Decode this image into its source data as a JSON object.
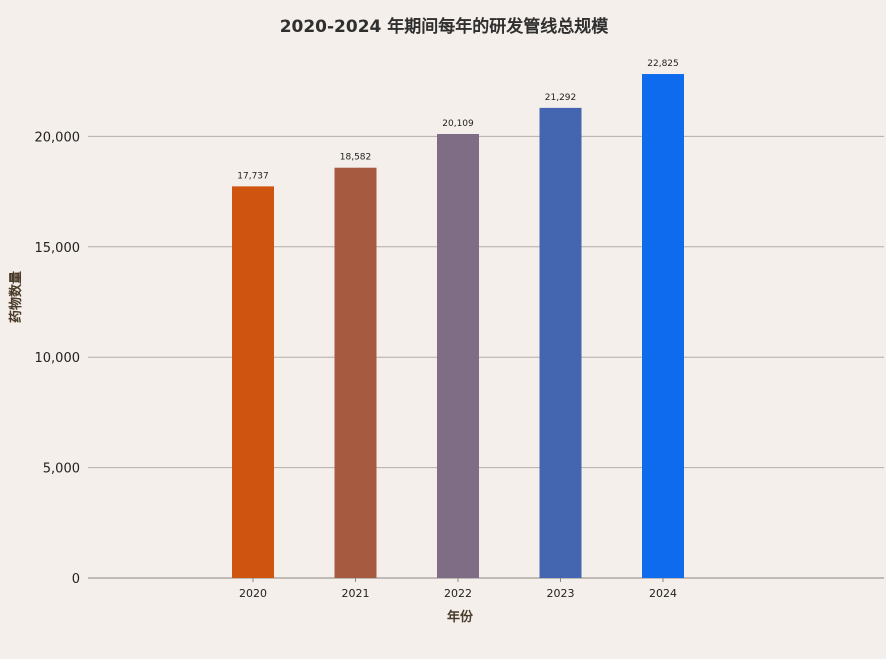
{
  "chart_data": {
    "type": "bar",
    "title": "2020-2024 年期间每年的研发管线总规模",
    "xlabel": "年份",
    "ylabel": "药物数量",
    "categories": [
      "2020",
      "2021",
      "2022",
      "2023",
      "2024"
    ],
    "values": [
      17737,
      18582,
      20109,
      21292,
      22825
    ],
    "value_labels": [
      "17,737",
      "18,582",
      "20,109",
      "21,292",
      "22,825"
    ],
    "colors": [
      "#cf5410",
      "#a65b40",
      "#7f6d86",
      "#4465b0",
      "#0f6bee"
    ],
    "ylim": [
      0,
      25000
    ],
    "yticks": [
      0,
      5000,
      10000,
      15000,
      20000
    ],
    "ytick_labels": [
      "0",
      "5,000",
      "10,000",
      "15,000",
      "20,000"
    ],
    "grid": true
  }
}
